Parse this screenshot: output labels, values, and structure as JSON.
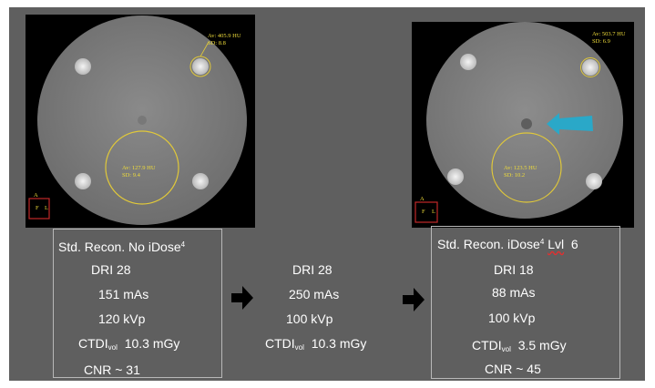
{
  "left_image": {
    "roi_top": {
      "mean": "Av: 405.9 HU",
      "sd": "SD: 8.8"
    },
    "roi_center": {
      "mean": "Av: 127.9 HU",
      "sd": "SD: 9.4"
    },
    "orient": {
      "top": "A",
      "left": "F",
      "right": "L"
    }
  },
  "right_image": {
    "roi_top": {
      "mean": "Av: 503.7 HU",
      "sd": "SD: 6.9"
    },
    "roi_center": {
      "mean": "Av: 123.5 HU",
      "sd": "SD: 10.2"
    },
    "orient": {
      "top": "A",
      "left": "F",
      "right": "L"
    },
    "arrow_color": "#2aa8c8"
  },
  "left_box": {
    "title": "Std. Recon. No iDose",
    "title_sup": "4",
    "dri": "DRI 28",
    "mas": "151 mAs",
    "kvp": "120 kVp",
    "ctdi_label": "CTDI",
    "ctdi_sub": "vol",
    "ctdi_value": "10.3 mGy",
    "cnr": "CNR ~ 31"
  },
  "middle": {
    "dri": "DRI 28",
    "mas": "250 mAs",
    "kvp": "100 kVp",
    "ctdi_label": "CTDI",
    "ctdi_sub": "vol",
    "ctdi_value": "10.3 mGy"
  },
  "right_box": {
    "title": "Std. Recon. iDose",
    "title_sup": "4",
    "title_lvl": "Lvl",
    "title_num": "6",
    "dri": "DRI 18",
    "mas": "88 mAs",
    "kvp": "100 kVp",
    "ctdi_label": "CTDI",
    "ctdi_sub": "vol",
    "ctdi_value": "3.5 mGy",
    "cnr": "CNR ~ 45"
  }
}
